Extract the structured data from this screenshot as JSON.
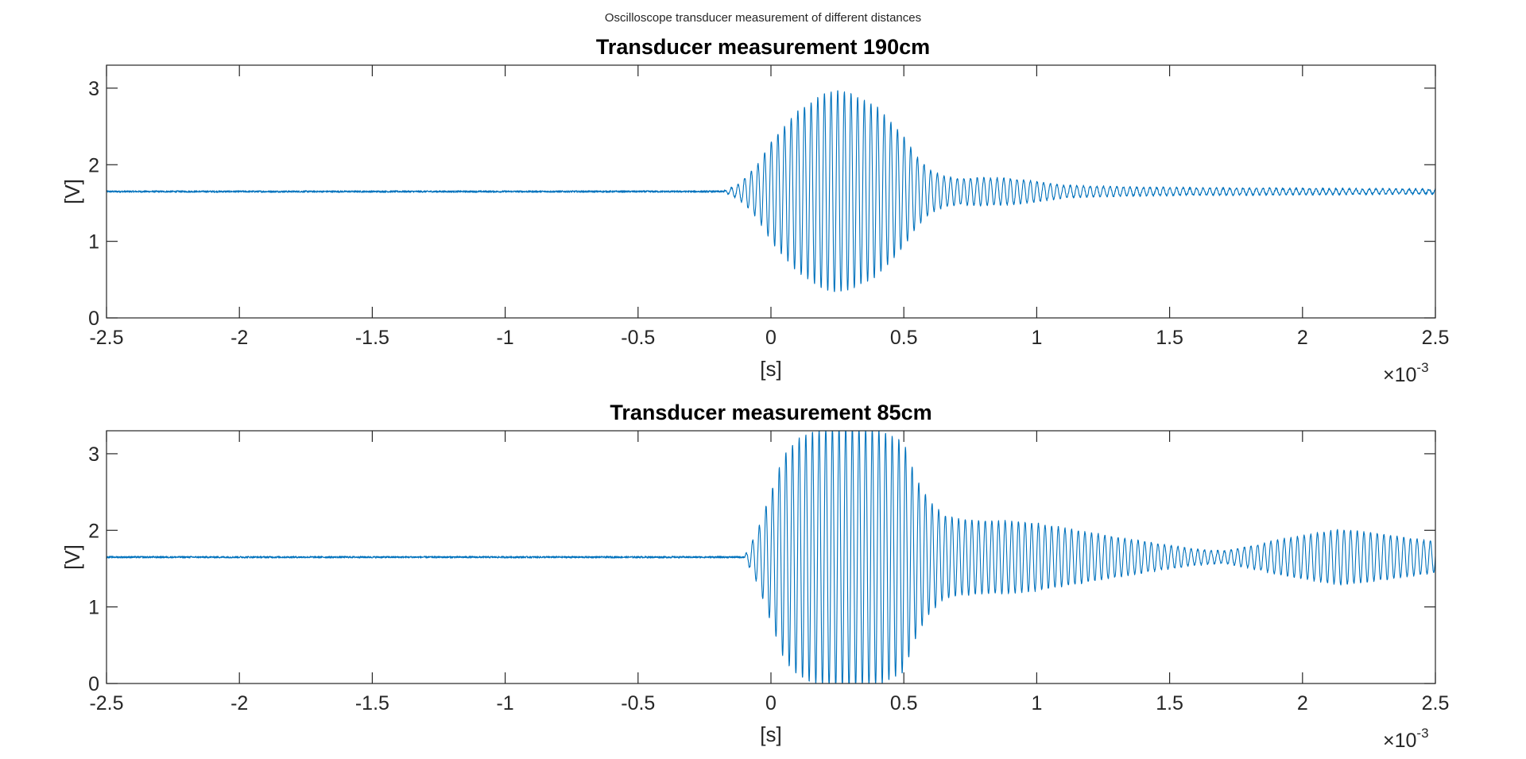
{
  "figure": {
    "suptitle": "Oscilloscope transducer measurement of different distances"
  },
  "colors": {
    "trace": "#0072BD",
    "axes": "#262626",
    "background": "#ffffff"
  },
  "chart_data": [
    {
      "type": "line",
      "title": "Transducer measurement 190cm",
      "xlabel": "[s]",
      "ylabel": "[V]",
      "x_exponent_base": "×10",
      "x_exponent": "-3",
      "xlim": [
        -2.5,
        2.5
      ],
      "ylim": [
        0,
        3.3
      ],
      "x_ticks": [
        -2.5,
        -2,
        -1.5,
        -1,
        -0.5,
        0,
        0.5,
        1,
        1.5,
        2,
        2.5
      ],
      "x_tick_labels": [
        "-2.5",
        "-2",
        "-1.5",
        "-1",
        "-0.5",
        "0",
        "0.5",
        "1",
        "1.5",
        "2",
        "2.5"
      ],
      "y_ticks": [
        0,
        1,
        2,
        3
      ],
      "y_tick_labels": [
        "0",
        "1",
        "2",
        "3"
      ],
      "grid": false,
      "series": [
        {
          "baseline_V": 1.65,
          "noise_amplitude_V": 0.012,
          "carrier_frequency_kHz": 40,
          "onset_x": -0.18,
          "envelope_V": {
            "x": [
              -2.5,
              -0.18,
              -0.12,
              -0.05,
              0.0,
              0.1,
              0.2,
              0.25,
              0.3,
              0.4,
              0.5,
              0.55,
              0.6,
              0.65,
              0.7,
              0.8,
              0.9,
              1.0,
              1.1,
              1.3,
              1.5,
              1.7,
              2.0,
              2.2,
              2.5
            ],
            "values": [
              0.0,
              0.0,
              0.1,
              0.35,
              0.65,
              1.05,
              1.28,
              1.32,
              1.28,
              1.1,
              0.72,
              0.45,
              0.28,
              0.2,
              0.17,
              0.18,
              0.17,
              0.13,
              0.08,
              0.06,
              0.05,
              0.045,
              0.04,
              0.035,
              0.03
            ]
          }
        }
      ]
    },
    {
      "type": "line",
      "title": "Transducer measurement 85cm",
      "xlabel": "[s]",
      "ylabel": "[V]",
      "x_exponent_base": "×10",
      "x_exponent": "-3",
      "xlim": [
        -2.5,
        2.5
      ],
      "ylim": [
        0,
        3.3
      ],
      "x_ticks": [
        -2.5,
        -2,
        -1.5,
        -1,
        -0.5,
        0,
        0.5,
        1,
        1.5,
        2,
        2.5
      ],
      "x_tick_labels": [
        "-2.5",
        "-2",
        "-1.5",
        "-1",
        "-0.5",
        "0",
        "0.5",
        "1",
        "1.5",
        "2",
        "2.5"
      ],
      "y_ticks": [
        0,
        1,
        2,
        3
      ],
      "y_tick_labels": [
        "0",
        "1",
        "2",
        "3"
      ],
      "grid": false,
      "series": [
        {
          "baseline_V": 1.65,
          "noise_amplitude_V": 0.012,
          "carrier_frequency_kHz": 40,
          "onset_x": -0.1,
          "envelope_V": {
            "x": [
              -2.5,
              -0.1,
              -0.05,
              0.0,
              0.05,
              0.1,
              0.2,
              0.3,
              0.4,
              0.5,
              0.55,
              0.6,
              0.65,
              0.7,
              0.8,
              0.9,
              1.0,
              1.1,
              1.3,
              1.5,
              1.6,
              1.7,
              1.8,
              1.9,
              2.0,
              2.1,
              2.15,
              2.2,
              2.3,
              2.4,
              2.5
            ],
            "values": [
              0.0,
              0.0,
              0.35,
              0.85,
              1.35,
              1.55,
              1.7,
              1.72,
              1.68,
              1.5,
              1.0,
              0.72,
              0.55,
              0.5,
              0.48,
              0.47,
              0.44,
              0.38,
              0.26,
              0.15,
              0.1,
              0.08,
              0.14,
              0.22,
              0.28,
              0.34,
              0.36,
              0.34,
              0.3,
              0.25,
              0.2
            ]
          }
        }
      ]
    }
  ]
}
